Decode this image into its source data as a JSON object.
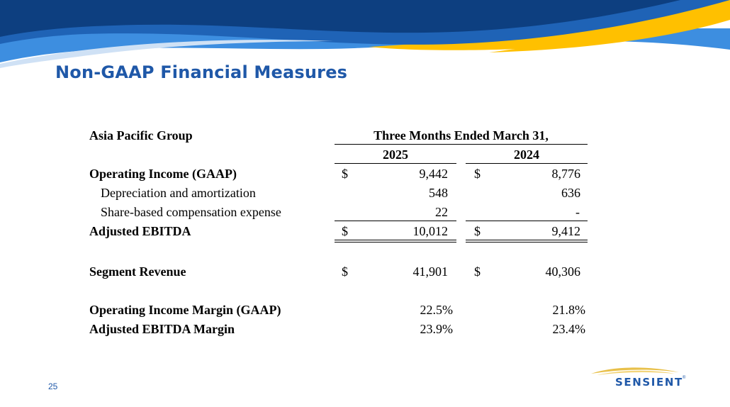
{
  "slide": {
    "title": "Non-GAAP Financial Measures",
    "page_number": "25"
  },
  "logo": {
    "name": "SENSIENT",
    "tm": "®"
  },
  "colors": {
    "title_blue": "#1f58a8",
    "banner_dark": "#0d3f80",
    "banner_mid": "#1f63b6",
    "banner_light": "#3d8ee0",
    "banner_yellow": "#ffc000"
  },
  "table": {
    "segment": "Asia Pacific Group",
    "period_header": "Three Months Ended March 31,",
    "years": [
      "2025",
      "2024"
    ],
    "rows": [
      {
        "label": "Operating Income (GAAP)",
        "cur1": "$",
        "v1": "9,442",
        "cur2": "$",
        "v2": "8,776"
      },
      {
        "label": "Depreciation and amortization",
        "cur1": "",
        "v1": "548",
        "cur2": "",
        "v2": "636"
      },
      {
        "label": "Share-based compensation expense",
        "cur1": "",
        "v1": "22",
        "cur2": "",
        "v2": "-"
      },
      {
        "label": "Adjusted EBITDA",
        "cur1": "$",
        "v1": "10,012",
        "cur2": "$",
        "v2": "9,412"
      },
      {
        "label": "Segment Revenue",
        "cur1": "$",
        "v1": "41,901",
        "cur2": "$",
        "v2": "40,306"
      },
      {
        "label": "Operating Income Margin (GAAP)",
        "cur1": "",
        "v1": "22.5%",
        "cur2": "",
        "v2": "21.8%"
      },
      {
        "label": "Adjusted EBITDA Margin",
        "cur1": "",
        "v1": "23.9%",
        "cur2": "",
        "v2": "23.4%"
      }
    ]
  }
}
